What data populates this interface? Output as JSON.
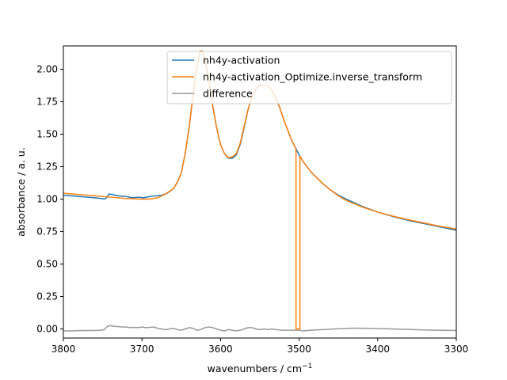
{
  "chart_data": {
    "type": "line",
    "xlabel": "wavenumbers / cm",
    "xlabel_sup": "−1",
    "ylabel": "absorbance / a. u.",
    "xlim": [
      3800,
      3300
    ],
    "ylim": [
      -0.07,
      2.18
    ],
    "x_ticks": [
      3800,
      3700,
      3600,
      3500,
      3400,
      3300
    ],
    "x_tick_labels": [
      "3800",
      "3700",
      "3600",
      "3500",
      "3400",
      "3300"
    ],
    "y_ticks": [
      0.0,
      0.25,
      0.5,
      0.75,
      1.0,
      1.25,
      1.5,
      1.75,
      2.0
    ],
    "y_tick_labels": [
      "0.00",
      "0.25",
      "0.50",
      "0.75",
      "1.00",
      "1.25",
      "1.50",
      "1.75",
      "2.00"
    ],
    "grid": false,
    "legend_position": "top-right",
    "series": [
      {
        "name": "nh4y-activation",
        "color": "#1f77b4",
        "points": [
          [
            3800,
            1.03
          ],
          [
            3790,
            1.025
          ],
          [
            3780,
            1.02
          ],
          [
            3770,
            1.015
          ],
          [
            3760,
            1.01
          ],
          [
            3752,
            1.005
          ],
          [
            3748,
            1.0
          ],
          [
            3745,
            1.01
          ],
          [
            3742,
            1.04
          ],
          [
            3738,
            1.035
          ],
          [
            3730,
            1.025
          ],
          [
            3720,
            1.02
          ],
          [
            3712,
            1.01
          ],
          [
            3705,
            1.015
          ],
          [
            3698,
            1.01
          ],
          [
            3690,
            1.02
          ],
          [
            3682,
            1.025
          ],
          [
            3675,
            1.03
          ],
          [
            3668,
            1.045
          ],
          [
            3660,
            1.08
          ],
          [
            3655,
            1.13
          ],
          [
            3650,
            1.2
          ],
          [
            3645,
            1.35
          ],
          [
            3640,
            1.55
          ],
          [
            3635,
            1.8
          ],
          [
            3630,
            2.02
          ],
          [
            3626,
            2.14
          ],
          [
            3623,
            2.14
          ],
          [
            3620,
            2.08
          ],
          [
            3615,
            1.92
          ],
          [
            3610,
            1.72
          ],
          [
            3605,
            1.55
          ],
          [
            3600,
            1.42
          ],
          [
            3595,
            1.35
          ],
          [
            3590,
            1.315
          ],
          [
            3585,
            1.315
          ],
          [
            3580,
            1.34
          ],
          [
            3575,
            1.42
          ],
          [
            3570,
            1.55
          ],
          [
            3565,
            1.69
          ],
          [
            3560,
            1.79
          ],
          [
            3555,
            1.85
          ],
          [
            3550,
            1.875
          ],
          [
            3545,
            1.88
          ],
          [
            3540,
            1.87
          ],
          [
            3535,
            1.84
          ],
          [
            3530,
            1.78
          ],
          [
            3525,
            1.71
          ],
          [
            3520,
            1.62
          ],
          [
            3515,
            1.54
          ],
          [
            3510,
            1.46
          ],
          [
            3505,
            1.4
          ],
          [
            3500,
            1.34
          ],
          [
            3495,
            1.29
          ],
          [
            3490,
            1.25
          ],
          [
            3485,
            1.21
          ],
          [
            3480,
            1.18
          ],
          [
            3470,
            1.12
          ],
          [
            3460,
            1.07
          ],
          [
            3450,
            1.03
          ],
          [
            3440,
            1.0
          ],
          [
            3420,
            0.945
          ],
          [
            3400,
            0.9
          ],
          [
            3380,
            0.865
          ],
          [
            3360,
            0.835
          ],
          [
            3340,
            0.81
          ],
          [
            3320,
            0.785
          ],
          [
            3300,
            0.76
          ]
        ]
      },
      {
        "name": "nh4y-activation_Optimize.inverse_transform",
        "color": "#ff7f0e",
        "points": [
          [
            3800,
            1.045
          ],
          [
            3780,
            1.035
          ],
          [
            3760,
            1.025
          ],
          [
            3740,
            1.015
          ],
          [
            3720,
            1.005
          ],
          [
            3700,
            1.0
          ],
          [
            3690,
            1.0
          ],
          [
            3680,
            1.01
          ],
          [
            3670,
            1.04
          ],
          [
            3660,
            1.08
          ],
          [
            3655,
            1.13
          ],
          [
            3650,
            1.2
          ],
          [
            3645,
            1.35
          ],
          [
            3640,
            1.55
          ],
          [
            3635,
            1.8
          ],
          [
            3630,
            2.02
          ],
          [
            3626,
            2.14
          ],
          [
            3623,
            2.14
          ],
          [
            3620,
            2.08
          ],
          [
            3615,
            1.92
          ],
          [
            3610,
            1.72
          ],
          [
            3605,
            1.55
          ],
          [
            3600,
            1.42
          ],
          [
            3595,
            1.35
          ],
          [
            3590,
            1.32
          ],
          [
            3585,
            1.325
          ],
          [
            3580,
            1.35
          ],
          [
            3575,
            1.43
          ],
          [
            3570,
            1.56
          ],
          [
            3565,
            1.69
          ],
          [
            3560,
            1.79
          ],
          [
            3555,
            1.85
          ],
          [
            3550,
            1.875
          ],
          [
            3545,
            1.88
          ],
          [
            3540,
            1.87
          ],
          [
            3535,
            1.84
          ],
          [
            3530,
            1.78
          ],
          [
            3525,
            1.71
          ],
          [
            3520,
            1.62
          ],
          [
            3515,
            1.54
          ],
          [
            3510,
            1.46
          ],
          [
            3505,
            1.4
          ],
          [
            3504,
            1.38
          ],
          [
            3504,
            0.0
          ],
          [
            3499,
            0.0
          ],
          [
            3499,
            1.33
          ],
          [
            3495,
            1.29
          ],
          [
            3490,
            1.25
          ],
          [
            3485,
            1.21
          ],
          [
            3480,
            1.18
          ],
          [
            3470,
            1.12
          ],
          [
            3460,
            1.07
          ],
          [
            3450,
            1.025
          ],
          [
            3440,
            0.99
          ],
          [
            3420,
            0.94
          ],
          [
            3400,
            0.9
          ],
          [
            3380,
            0.868
          ],
          [
            3360,
            0.84
          ],
          [
            3340,
            0.815
          ],
          [
            3320,
            0.79
          ],
          [
            3300,
            0.77
          ]
        ]
      },
      {
        "name": "difference",
        "color": "#999999",
        "points": [
          [
            3800,
            -0.015
          ],
          [
            3790,
            -0.015
          ],
          [
            3780,
            -0.013
          ],
          [
            3770,
            -0.012
          ],
          [
            3760,
            -0.012
          ],
          [
            3752,
            -0.01
          ],
          [
            3748,
            -0.005
          ],
          [
            3744,
            0.02
          ],
          [
            3740,
            0.025
          ],
          [
            3735,
            0.02
          ],
          [
            3730,
            0.018
          ],
          [
            3725,
            0.015
          ],
          [
            3720,
            0.015
          ],
          [
            3715,
            0.01
          ],
          [
            3710,
            0.012
          ],
          [
            3705,
            0.01
          ],
          [
            3700,
            0.015
          ],
          [
            3695,
            0.01
          ],
          [
            3690,
            0.012
          ],
          [
            3685,
            0.015
          ],
          [
            3680,
            0.005
          ],
          [
            3675,
            0.0
          ],
          [
            3670,
            -0.005
          ],
          [
            3665,
            0.0
          ],
          [
            3660,
            0.005
          ],
          [
            3655,
            -0.005
          ],
          [
            3650,
            -0.01
          ],
          [
            3645,
            0.0
          ],
          [
            3640,
            0.01
          ],
          [
            3635,
            0.005
          ],
          [
            3630,
            -0.01
          ],
          [
            3625,
            -0.005
          ],
          [
            3620,
            0.01
          ],
          [
            3615,
            0.015
          ],
          [
            3610,
            0.01
          ],
          [
            3605,
            0.0
          ],
          [
            3600,
            -0.01
          ],
          [
            3595,
            -0.015
          ],
          [
            3590,
            -0.005
          ],
          [
            3585,
            -0.01
          ],
          [
            3580,
            -0.015
          ],
          [
            3575,
            -0.01
          ],
          [
            3570,
            0.0
          ],
          [
            3565,
            0.01
          ],
          [
            3560,
            0.01
          ],
          [
            3555,
            0.0
          ],
          [
            3550,
            -0.005
          ],
          [
            3545,
            0.0
          ],
          [
            3540,
            -0.005
          ],
          [
            3535,
            0.0
          ],
          [
            3530,
            -0.005
          ],
          [
            3520,
            -0.01
          ],
          [
            3510,
            -0.01
          ],
          [
            3505,
            -0.01
          ],
          [
            3500,
            -0.01
          ],
          [
            3495,
            -0.015
          ],
          [
            3485,
            -0.01
          ],
          [
            3470,
            -0.005
          ],
          [
            3450,
            0.002
          ],
          [
            3430,
            0.006
          ],
          [
            3410,
            0.005
          ],
          [
            3390,
            0.002
          ],
          [
            3370,
            -0.002
          ],
          [
            3350,
            -0.006
          ],
          [
            3330,
            -0.009
          ],
          [
            3300,
            -0.012
          ]
        ]
      }
    ]
  }
}
